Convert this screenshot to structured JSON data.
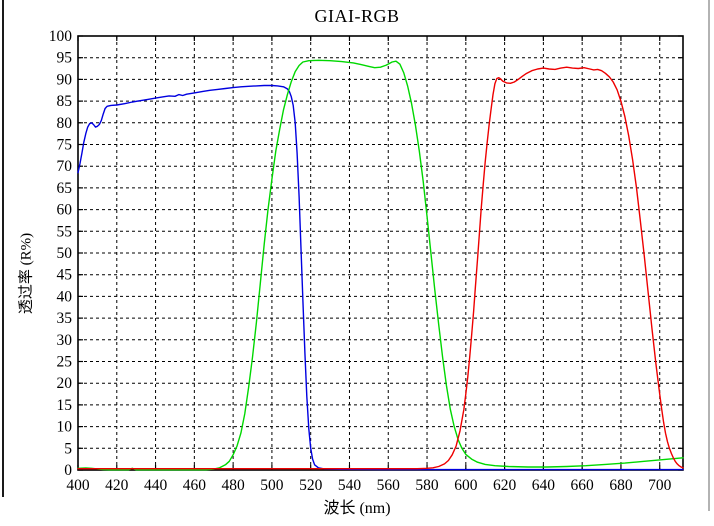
{
  "chart_data": {
    "type": "line",
    "title": "GIAI-RGB",
    "xlabel": "波长 (nm)",
    "ylabel": "透过率 (R%)",
    "xlim": [
      400,
      712
    ],
    "ylim": [
      0,
      100
    ],
    "x_ticks": [
      400,
      420,
      440,
      460,
      480,
      500,
      520,
      540,
      560,
      580,
      600,
      620,
      640,
      660,
      680,
      700
    ],
    "y_ticks": [
      0,
      5,
      10,
      15,
      20,
      25,
      30,
      35,
      40,
      45,
      50,
      55,
      60,
      65,
      70,
      75,
      80,
      85,
      90,
      95,
      100
    ],
    "grid": "dashed-black",
    "legend": "none",
    "background": "#ffffff",
    "frame_color": "#000000",
    "series": [
      {
        "name": "blue-channel",
        "color": "#0000e0",
        "points": [
          [
            400,
            68.5
          ],
          [
            401,
            70.5
          ],
          [
            402,
            73
          ],
          [
            403,
            75.5
          ],
          [
            404,
            77.5
          ],
          [
            405,
            79
          ],
          [
            406,
            79.8
          ],
          [
            407,
            80
          ],
          [
            408,
            79.6
          ],
          [
            409,
            79
          ],
          [
            410,
            79.2
          ],
          [
            411,
            79.6
          ],
          [
            412,
            80.5
          ],
          [
            413,
            82
          ],
          [
            414,
            83.3
          ],
          [
            415,
            83.8
          ],
          [
            417,
            84
          ],
          [
            420,
            84.1
          ],
          [
            424,
            84.4
          ],
          [
            428,
            84.8
          ],
          [
            432,
            85.1
          ],
          [
            436,
            85.4
          ],
          [
            440,
            85.7
          ],
          [
            444,
            86
          ],
          [
            447,
            86.2
          ],
          [
            450,
            86.1
          ],
          [
            452,
            86.5
          ],
          [
            454,
            86.3
          ],
          [
            456,
            86.6
          ],
          [
            460,
            86.9
          ],
          [
            464,
            87.2
          ],
          [
            468,
            87.5
          ],
          [
            472,
            87.7
          ],
          [
            476,
            87.9
          ],
          [
            480,
            88.1
          ],
          [
            484,
            88.3
          ],
          [
            488,
            88.4
          ],
          [
            492,
            88.5
          ],
          [
            496,
            88.6
          ],
          [
            500,
            88.6
          ],
          [
            503,
            88.5
          ],
          [
            506,
            88.3
          ],
          [
            508,
            87.8
          ],
          [
            509,
            87.2
          ],
          [
            510,
            86
          ],
          [
            511,
            84
          ],
          [
            512,
            80
          ],
          [
            513,
            73
          ],
          [
            514,
            63
          ],
          [
            515,
            51
          ],
          [
            516,
            39
          ],
          [
            517,
            27
          ],
          [
            518,
            17
          ],
          [
            519,
            9.5
          ],
          [
            520,
            5
          ],
          [
            521,
            2.5
          ],
          [
            522,
            1.2
          ],
          [
            524,
            0.5
          ],
          [
            527,
            0.25
          ],
          [
            535,
            0.15
          ],
          [
            560,
            0.1
          ],
          [
            600,
            0.1
          ],
          [
            660,
            0.1
          ],
          [
            712,
            0.1
          ]
        ]
      },
      {
        "name": "green-channel",
        "color": "#00d800",
        "points": [
          [
            400,
            0.4
          ],
          [
            404,
            0.45
          ],
          [
            407,
            0.4
          ],
          [
            410,
            0.25
          ],
          [
            413,
            0.1
          ],
          [
            416,
            0.05
          ],
          [
            426,
            0.05
          ],
          [
            428,
            0.4
          ],
          [
            430,
            0.05
          ],
          [
            466,
            0.05
          ],
          [
            470,
            0.2
          ],
          [
            473,
            0.5
          ],
          [
            476,
            1.2
          ],
          [
            478,
            2
          ],
          [
            480,
            3.5
          ],
          [
            482,
            5.5
          ],
          [
            484,
            8.5
          ],
          [
            486,
            13
          ],
          [
            488,
            19
          ],
          [
            490,
            26
          ],
          [
            492,
            34
          ],
          [
            494,
            43
          ],
          [
            496,
            52
          ],
          [
            498,
            60
          ],
          [
            500,
            67
          ],
          [
            502,
            73.5
          ],
          [
            504,
            78.5
          ],
          [
            506,
            83
          ],
          [
            508,
            86.5
          ],
          [
            510,
            89.5
          ],
          [
            512,
            91.8
          ],
          [
            514,
            93.2
          ],
          [
            516,
            94
          ],
          [
            519,
            94.3
          ],
          [
            524,
            94.4
          ],
          [
            530,
            94.3
          ],
          [
            536,
            94.1
          ],
          [
            542,
            93.8
          ],
          [
            546,
            93.4
          ],
          [
            550,
            93
          ],
          [
            553,
            92.7
          ],
          [
            556,
            92.8
          ],
          [
            559,
            93.3
          ],
          [
            562,
            94
          ],
          [
            564,
            94.2
          ],
          [
            566,
            93.5
          ],
          [
            568,
            91.5
          ],
          [
            570,
            88.5
          ],
          [
            572,
            84.5
          ],
          [
            574,
            79.5
          ],
          [
            576,
            73.5
          ],
          [
            578,
            66.5
          ],
          [
            580,
            58.5
          ],
          [
            582,
            50
          ],
          [
            584,
            41.5
          ],
          [
            586,
            33.5
          ],
          [
            588,
            26
          ],
          [
            590,
            19.5
          ],
          [
            592,
            14
          ],
          [
            594,
            10
          ],
          [
            596,
            7
          ],
          [
            598,
            5
          ],
          [
            600,
            3.6
          ],
          [
            603,
            2.5
          ],
          [
            606,
            1.8
          ],
          [
            610,
            1.3
          ],
          [
            615,
            1
          ],
          [
            622,
            0.8
          ],
          [
            632,
            0.7
          ],
          [
            642,
            0.7
          ],
          [
            652,
            0.8
          ],
          [
            662,
            1
          ],
          [
            672,
            1.3
          ],
          [
            682,
            1.6
          ],
          [
            692,
            2
          ],
          [
            702,
            2.4
          ],
          [
            712,
            2.8
          ]
        ]
      },
      {
        "name": "red-channel",
        "color": "#ee0000",
        "points": [
          [
            400,
            0.3
          ],
          [
            450,
            0.3
          ],
          [
            500,
            0.3
          ],
          [
            550,
            0.3
          ],
          [
            575,
            0.3
          ],
          [
            580,
            0.4
          ],
          [
            583,
            0.5
          ],
          [
            586,
            0.8
          ],
          [
            589,
            1.4
          ],
          [
            591,
            2.2
          ],
          [
            593,
            3.5
          ],
          [
            595,
            5.5
          ],
          [
            597,
            9
          ],
          [
            599,
            14
          ],
          [
            600,
            17.5
          ],
          [
            601,
            21.5
          ],
          [
            602,
            26
          ],
          [
            603,
            31
          ],
          [
            604,
            36.5
          ],
          [
            605,
            42.5
          ],
          [
            606,
            48.5
          ],
          [
            607,
            54.5
          ],
          [
            608,
            60.5
          ],
          [
            609,
            66
          ],
          [
            610,
            71
          ],
          [
            611,
            75.5
          ],
          [
            612,
            79.5
          ],
          [
            613,
            83
          ],
          [
            614,
            86.5
          ],
          [
            615,
            89
          ],
          [
            616,
            90.2
          ],
          [
            617,
            90.4
          ],
          [
            618,
            90.1
          ],
          [
            619,
            89.6
          ],
          [
            621,
            89.2
          ],
          [
            623,
            89.1
          ],
          [
            625,
            89.4
          ],
          [
            627,
            90
          ],
          [
            629,
            90.7
          ],
          [
            631,
            91.3
          ],
          [
            634,
            92
          ],
          [
            637,
            92.4
          ],
          [
            640,
            92.6
          ],
          [
            643,
            92.4
          ],
          [
            646,
            92.3
          ],
          [
            649,
            92.6
          ],
          [
            652,
            92.8
          ],
          [
            655,
            92.6
          ],
          [
            658,
            92.5
          ],
          [
            661,
            92.7
          ],
          [
            664,
            92.4
          ],
          [
            666,
            92.2
          ],
          [
            668,
            92.3
          ],
          [
            670,
            92
          ],
          [
            672,
            91.4
          ],
          [
            674,
            90.6
          ],
          [
            676,
            89.4
          ],
          [
            678,
            87.6
          ],
          [
            680,
            85
          ],
          [
            682,
            81.5
          ],
          [
            684,
            77
          ],
          [
            686,
            71.5
          ],
          [
            688,
            65
          ],
          [
            690,
            57.5
          ],
          [
            692,
            49.5
          ],
          [
            694,
            41
          ],
          [
            696,
            32.5
          ],
          [
            698,
            24.5
          ],
          [
            700,
            17.5
          ],
          [
            701,
            14
          ],
          [
            702,
            11
          ],
          [
            703,
            8.5
          ],
          [
            704,
            6.5
          ],
          [
            705,
            5
          ],
          [
            706,
            3.8
          ],
          [
            707,
            2.8
          ],
          [
            708,
            2
          ],
          [
            709,
            1.4
          ],
          [
            710,
            1
          ],
          [
            711,
            0.7
          ],
          [
            712,
            0.5
          ]
        ]
      }
    ]
  }
}
